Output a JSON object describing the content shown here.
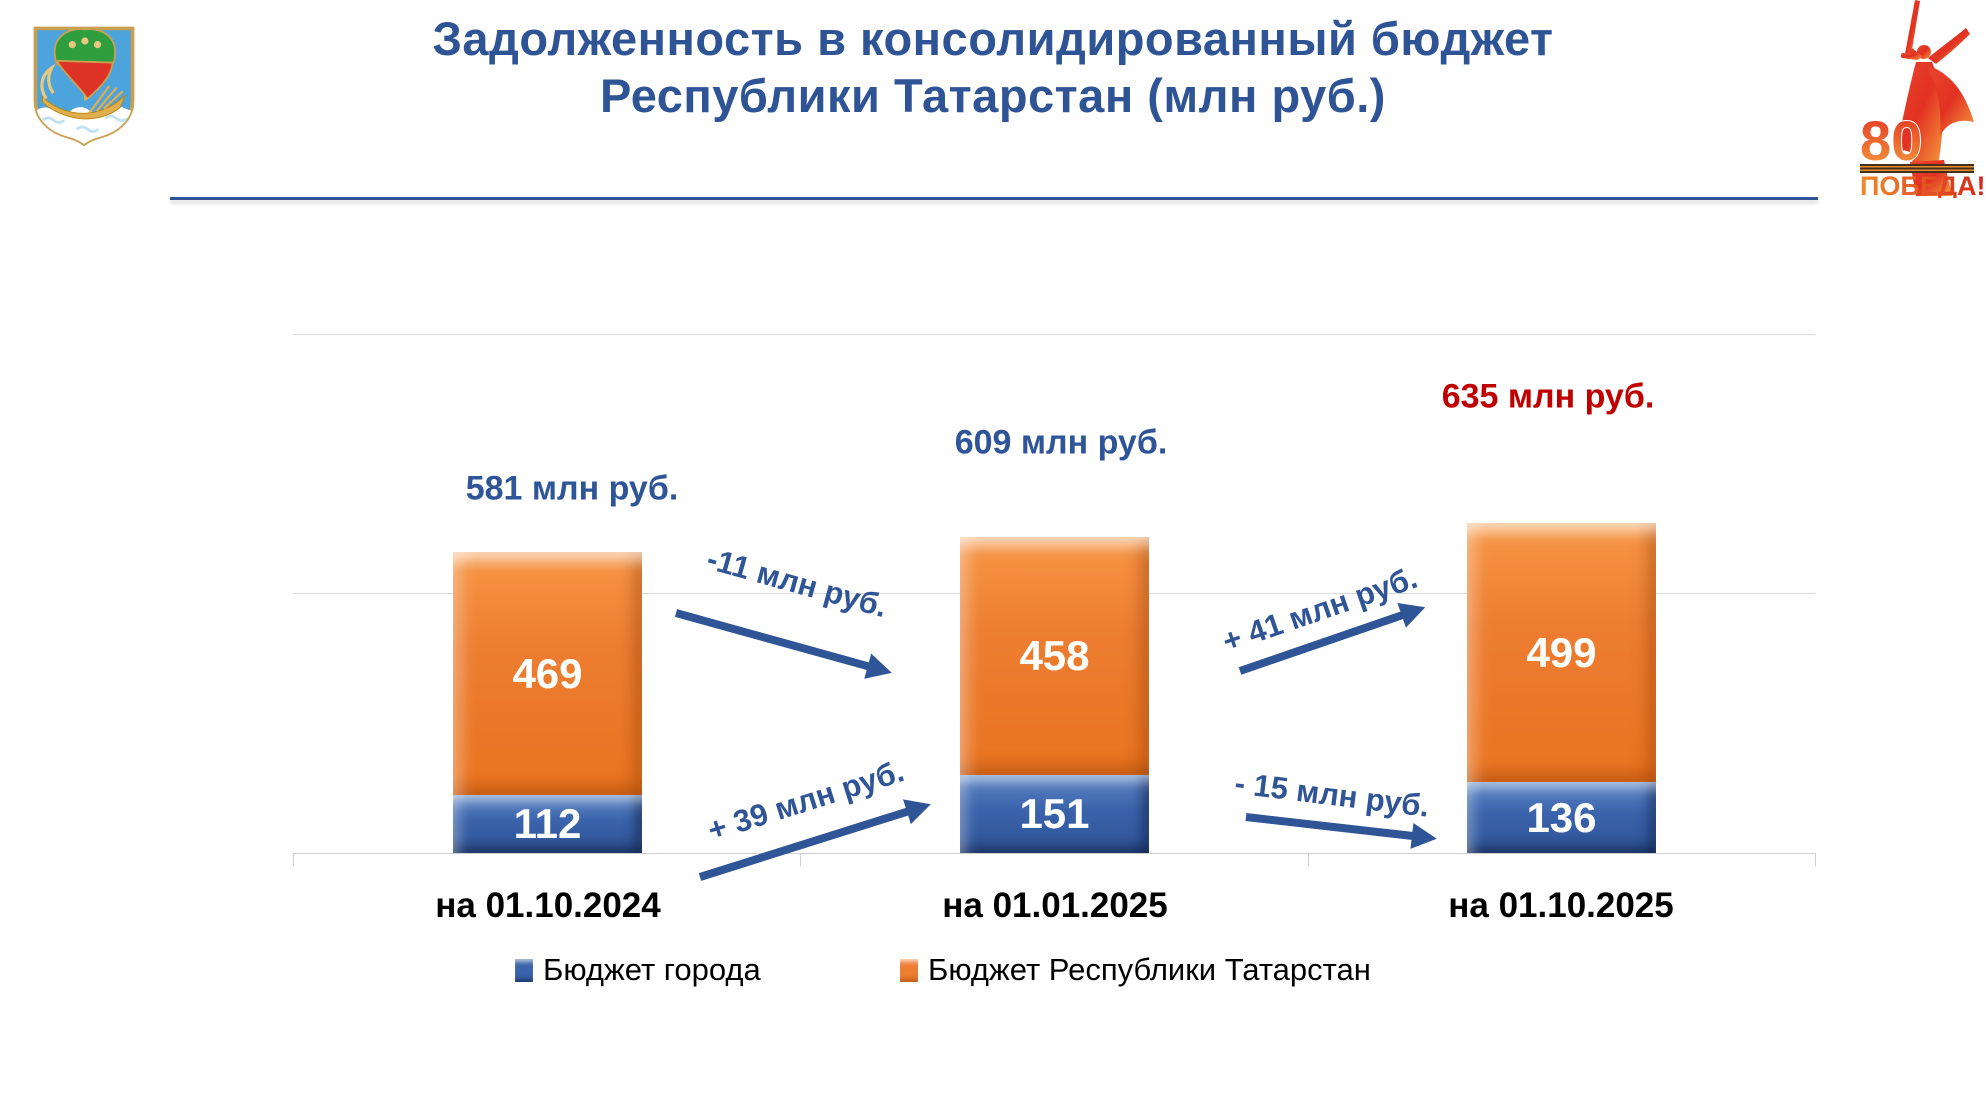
{
  "header": {
    "title_line1": "Задолженность в консолидированный бюджет",
    "title_line2": "Республики Татарстан (млн руб.)"
  },
  "logos": {
    "left_emblem": "coat-of-arms-naberezhnye-chelny",
    "victory": {
      "number": "80",
      "caption": "ПОБЕДА!"
    }
  },
  "chart_data": {
    "type": "bar",
    "stacked": true,
    "title": "Задолженность в консолидированный бюджет Республики Татарстан (млн руб.)",
    "categories": [
      "на 01.10.2024",
      "на 01.01.2025",
      "на 01.10.2025"
    ],
    "series": [
      {
        "name": "Бюджет города",
        "color": "#3A63AB",
        "values": [
          112,
          151,
          136
        ]
      },
      {
        "name": "Бюджет Республики Татарстан",
        "color": "#ED7D31",
        "values": [
          469,
          458,
          499
        ]
      }
    ],
    "totals": [
      {
        "label": "581 млн руб.",
        "value": 581,
        "color": "#2E5597"
      },
      {
        "label": "609 млн руб.",
        "value": 609,
        "color": "#2E5597"
      },
      {
        "label": "635 млн руб.",
        "value": 635,
        "color": "#C00000"
      }
    ],
    "annotations": [
      {
        "text": "-11 млн руб.",
        "between": [
          0,
          1
        ],
        "series": "Бюджет Республики Татарстан"
      },
      {
        "text": "+ 39 млн руб.",
        "between": [
          0,
          1
        ],
        "series": "Бюджет города"
      },
      {
        "text": "+ 41 млн руб.",
        "between": [
          1,
          2
        ],
        "series": "Бюджет Республики Татарстан"
      },
      {
        "text": "- 15 млн руб.",
        "between": [
          1,
          2
        ],
        "series": "Бюджет города"
      }
    ],
    "ylim": [
      0,
      1000
    ],
    "gridlines": [
      0,
      500,
      1000
    ],
    "grid_color": "#D9D9D9",
    "legend_position": "bottom",
    "value_labels_color": "#FFFFFF",
    "axis_hidden": true
  },
  "colors": {
    "title": "#2F5496",
    "annotation": "#2F5597",
    "total_highlight": "#C00000",
    "category_label": "#000000"
  }
}
